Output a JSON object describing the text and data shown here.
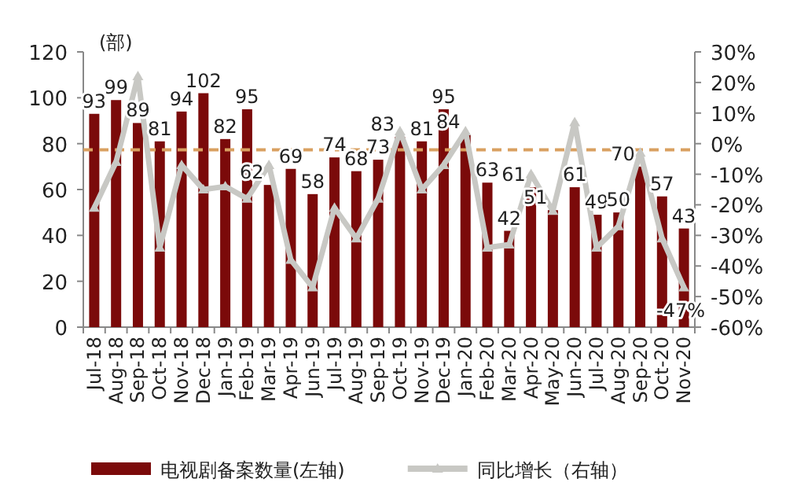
{
  "chart_data": {
    "type": "bar",
    "categories": [
      "Jul-18",
      "Aug-18",
      "Sep-18",
      "Oct-18",
      "Nov-18",
      "Dec-18",
      "Jan-19",
      "Feb-19",
      "Mar-19",
      "Apr-19",
      "Jun-19",
      "Jul-19",
      "Aug-19",
      "Sep-19",
      "Oct-19",
      "Nov-19",
      "Dec-19",
      "Jan-20",
      "Feb-20",
      "Mar-20",
      "Apr-20",
      "May-20",
      "Jun-20",
      "Jul-20",
      "Aug-20",
      "Sep-20",
      "Oct-20",
      "Nov-20"
    ],
    "series": [
      {
        "name": "电视剧备案数量(左轴)",
        "color": "#7b0a0a",
        "values": [
          93,
          99,
          89,
          81,
          94,
          102,
          82,
          95,
          62,
          69,
          58,
          74,
          68,
          73,
          83,
          81,
          95,
          84,
          63,
          42,
          61,
          51,
          61,
          49,
          50,
          70,
          57,
          43
        ],
        "value_labels": [
          "93",
          "99",
          "89",
          "81",
          "94",
          "102",
          "82",
          "95",
          "62",
          "69",
          "58",
          "74",
          "68",
          "73",
          "83",
          "81",
          "95",
          "84",
          "63",
          "42",
          "61",
          "51",
          "61",
          "49",
          "50",
          "70",
          "57",
          "43"
        ]
      },
      {
        "name": "同比增长（右轴）",
        "type": "line",
        "axis": "y2",
        "color": "#c8c8c4",
        "marker": "triangle",
        "values": [
          -21,
          -6,
          22,
          -34,
          -7,
          -15,
          -14,
          -18,
          -7,
          -38,
          -47,
          -21,
          -31,
          -18,
          4,
          -15,
          -7,
          4,
          -34,
          -33,
          -10,
          -22,
          7,
          -34,
          -27,
          -3,
          -31,
          -47
        ],
        "value_labels": [
          null,
          null,
          null,
          null,
          null,
          null,
          null,
          null,
          null,
          null,
          null,
          null,
          null,
          null,
          null,
          null,
          null,
          null,
          null,
          null,
          null,
          null,
          null,
          null,
          null,
          null,
          null,
          "-47%"
        ]
      }
    ],
    "ylim": [
      0,
      120
    ],
    "yticks": [
      0,
      20,
      40,
      60,
      80,
      100,
      120
    ],
    "y2lim": [
      -60,
      30
    ],
    "y2ticks": [
      {
        "value": 30,
        "label": "30%"
      },
      {
        "value": 20,
        "label": "20%"
      },
      {
        "value": 10,
        "label": "10%"
      },
      {
        "value": 0,
        "label": "0%"
      },
      {
        "value": -10,
        "label": "-10%"
      },
      {
        "value": -20,
        "label": "-20%"
      },
      {
        "value": -30,
        "label": "-30%"
      },
      {
        "value": -40,
        "label": "-40%"
      },
      {
        "value": -50,
        "label": "-50%"
      },
      {
        "value": -60,
        "label": "-60%"
      }
    ],
    "ref_lines": [
      {
        "axis": "y2",
        "value": -2,
        "color": "#d9a060",
        "line_style": "dashed"
      }
    ],
    "annotations": [
      "(部)"
    ],
    "legend": "bottom"
  }
}
